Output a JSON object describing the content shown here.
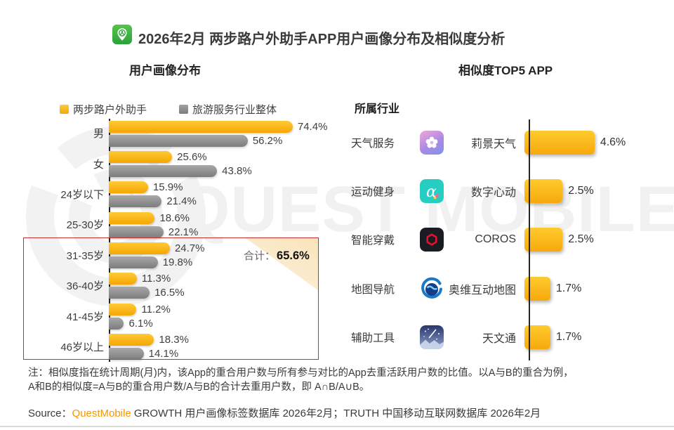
{
  "header": {
    "title": "2026年2月 两步路户外助手APP用户画像分布及相似度分析",
    "app_icon": "liangbulu-app-icon"
  },
  "left_section": {
    "title": "用户画像分布"
  },
  "right_section": {
    "title": "相似度TOP5 APP"
  },
  "watermark": "QUEST MOBILE",
  "chart_data": [
    {
      "type": "bar",
      "orientation": "horizontal",
      "title": "用户画像分布",
      "unit": "%",
      "categories": [
        "男",
        "女",
        "24岁以下",
        "25-30岁",
        "31-35岁",
        "36-40岁",
        "41-45岁",
        "46岁以上"
      ],
      "series": [
        {
          "name": "两步路户外助手",
          "color": "#F9B313",
          "values": [
            74.4,
            25.6,
            15.9,
            18.6,
            24.7,
            11.3,
            11.2,
            18.3
          ]
        },
        {
          "name": "旅游服务行业整体",
          "color": "#8C8C8C",
          "values": [
            56.2,
            43.8,
            21.4,
            22.1,
            19.8,
            16.5,
            6.1,
            14.1
          ]
        }
      ],
      "highlight": {
        "categories": [
          "31-35岁",
          "36-40岁",
          "41-45岁",
          "46岁以上"
        ],
        "label": "合计：",
        "value": "65.6%",
        "box_color": "#C9302C"
      }
    },
    {
      "type": "bar",
      "orientation": "horizontal",
      "title": "相似度TOP5 APP",
      "column_header": "所属行业",
      "unit": "%",
      "bar_color": "#F9B313",
      "rows": [
        {
          "industry": "天气服务",
          "app": "莉景天气",
          "value": 4.6,
          "icon": "liying-weather-app-icon"
        },
        {
          "industry": "运动健身",
          "app": "数字心动",
          "value": 2.5,
          "icon": "digital-heartbeat-app-icon"
        },
        {
          "industry": "智能穿戴",
          "app": "COROS",
          "value": 2.5,
          "icon": "coros-app-icon"
        },
        {
          "industry": "地图导航",
          "app": "奥维互动地图",
          "value": 1.7,
          "icon": "ovital-map-app-icon"
        },
        {
          "industry": "辅助工具",
          "app": "天文通",
          "value": 1.7,
          "icon": "astro-weather-app-icon"
        }
      ]
    }
  ],
  "note": {
    "line1": "注：相似度指在统计周期(月)内，该App的重合用户数与所有参与对比的App去重活跃用户数的比值。以A与B的重合为例，",
    "line2": "A和B的相似度=A与B的重合用户数/A与B的合计去重用户数，即 A∩B/A∪B。"
  },
  "source": {
    "prefix": "Source：",
    "brand": "QuestMobile",
    "rest": " GROWTH 用户画像标签数据库 2026年2月；TRUTH 中国移动互联网数据库 2026年2月"
  }
}
